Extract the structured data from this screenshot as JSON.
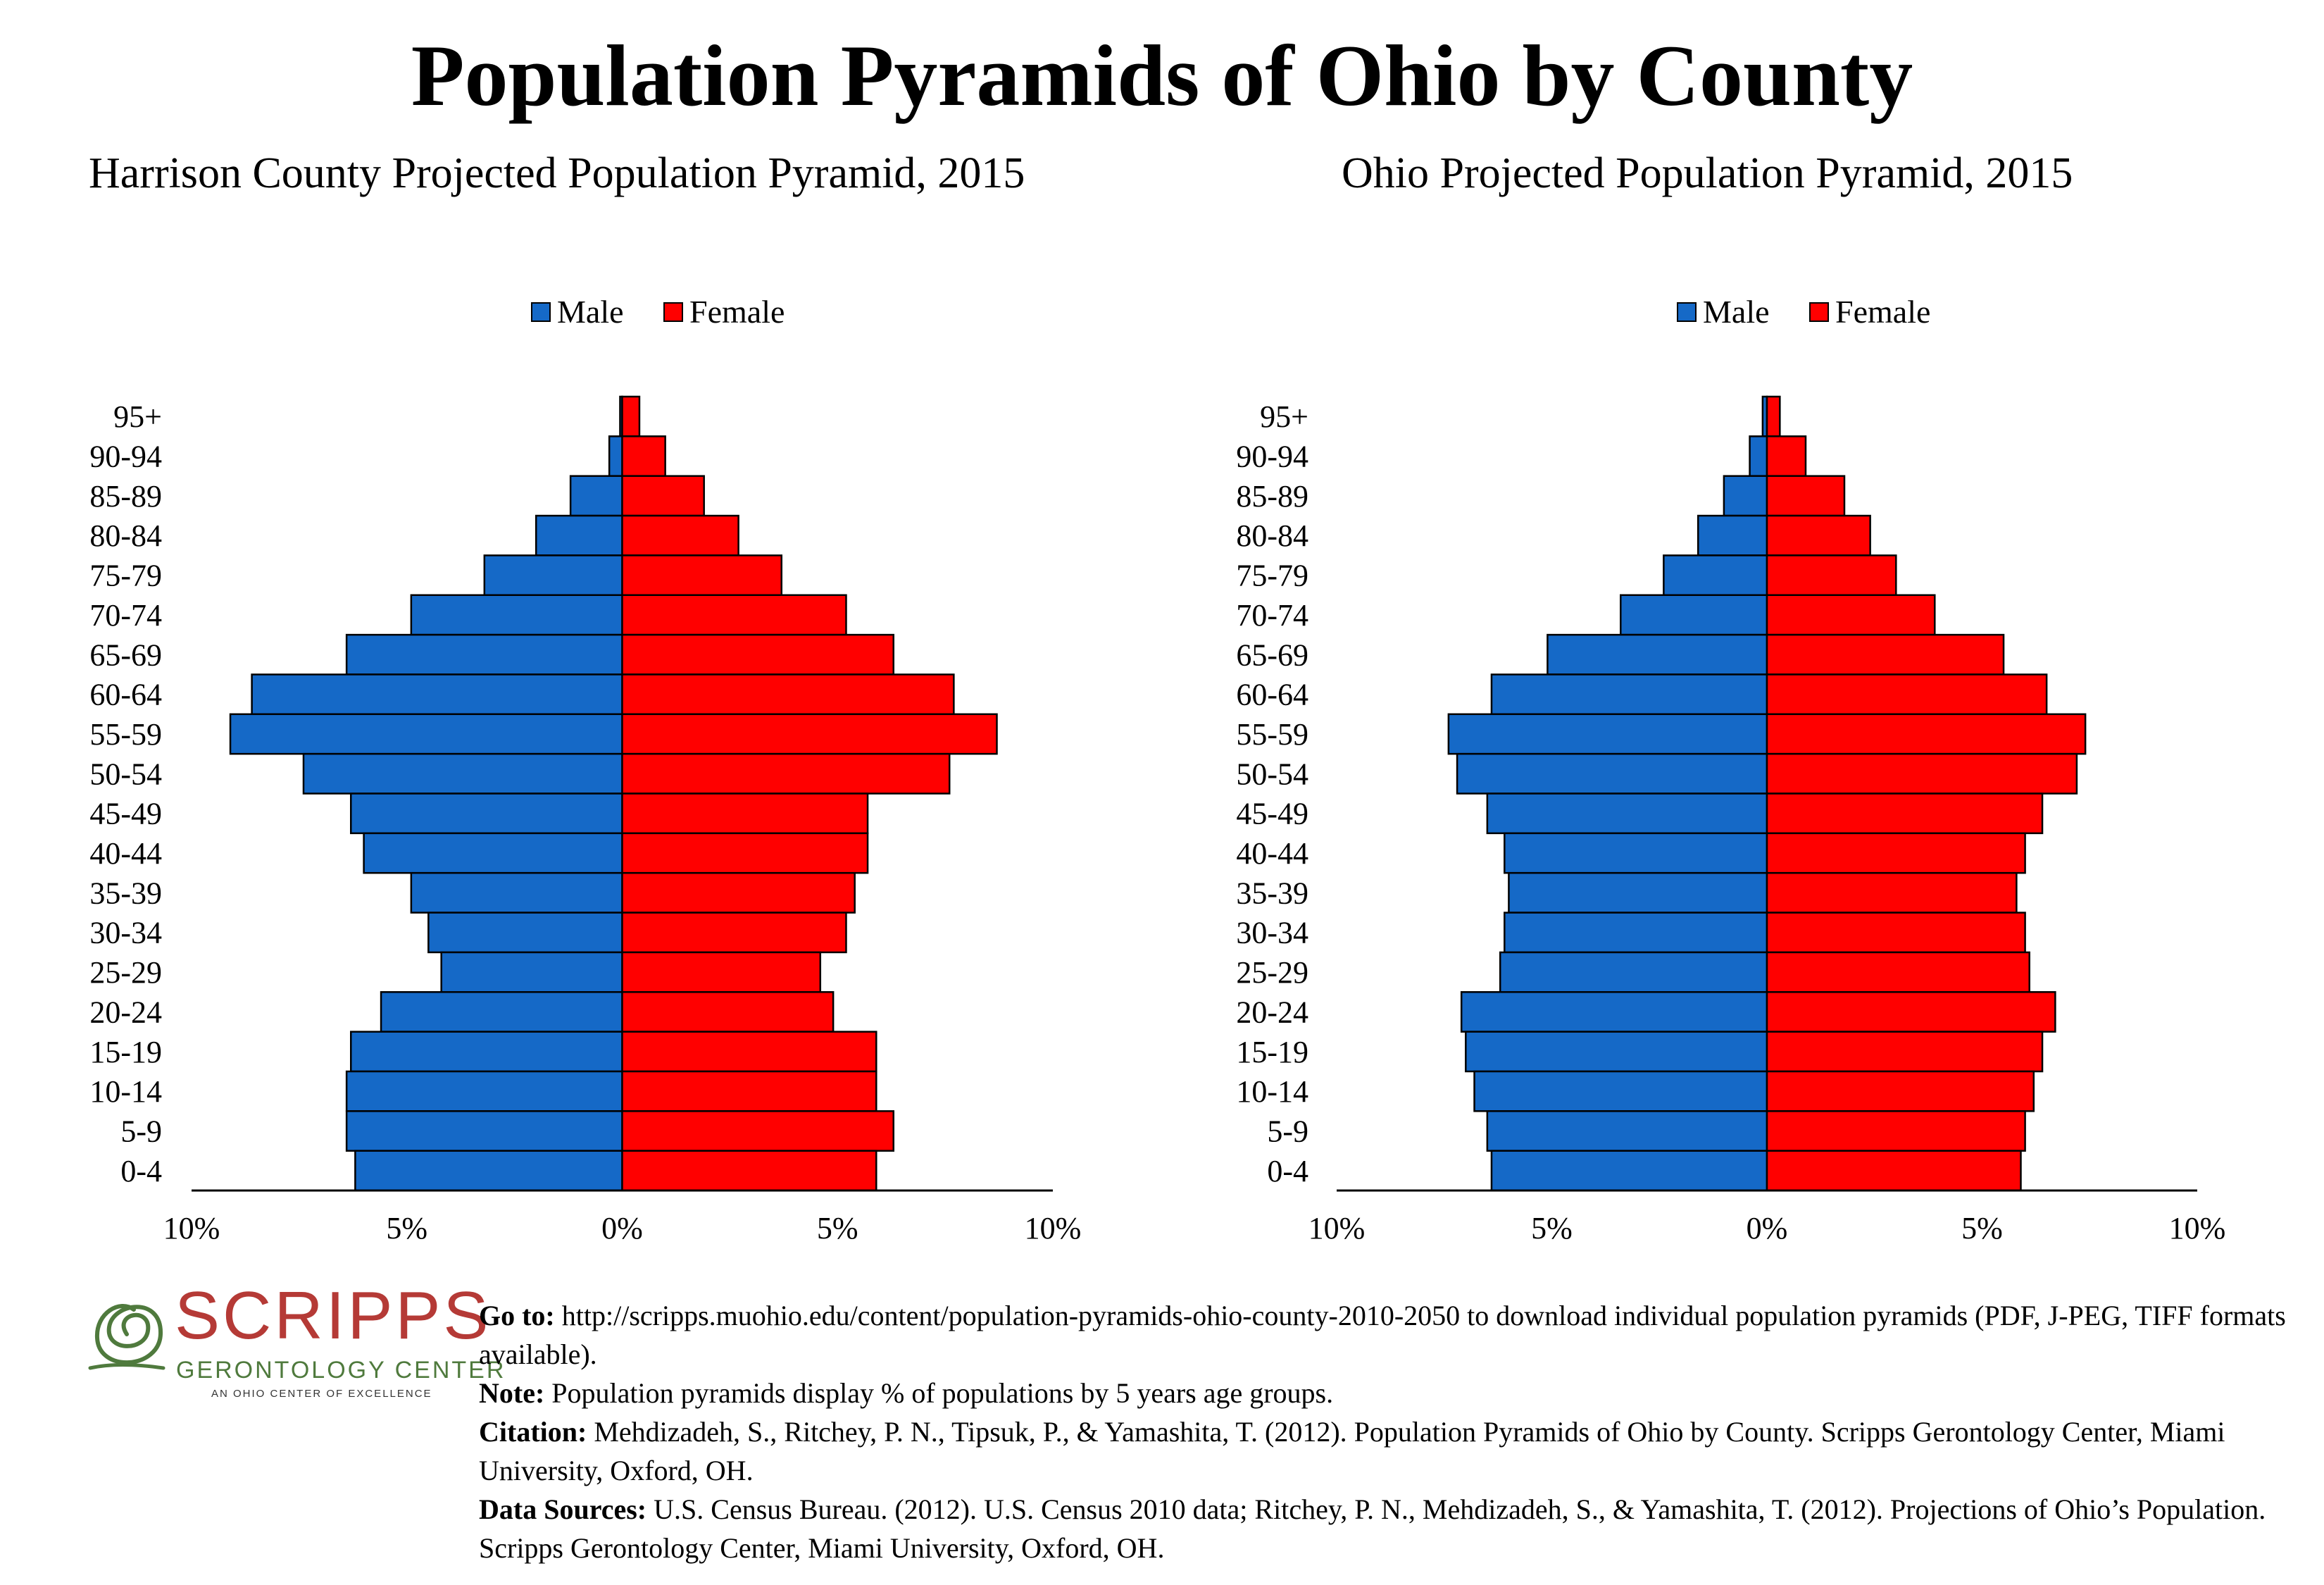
{
  "page": {
    "title": "Population Pyramids of Ohio by County"
  },
  "colors": {
    "male": "#1569c7",
    "female": "#ff0000",
    "logo_red": "#b53a36",
    "logo_green": "#4f7a3d"
  },
  "chart_data": [
    {
      "type": "bar",
      "title": "Harrison County Projected Population Pyramid, 2015",
      "categories": [
        "95+",
        "90-94",
        "85-89",
        "80-84",
        "75-79",
        "70-74",
        "65-69",
        "60-64",
        "55-59",
        "50-54",
        "45-49",
        "40-44",
        "35-39",
        "30-34",
        "25-29",
        "20-24",
        "15-19",
        "10-14",
        "5-9",
        "0-4"
      ],
      "series": [
        {
          "name": "Male",
          "color": "#1569c7",
          "values": [
            0.05,
            0.3,
            1.2,
            2.0,
            3.2,
            4.9,
            6.4,
            8.6,
            9.1,
            7.4,
            6.3,
            6.0,
            4.9,
            4.5,
            4.2,
            5.6,
            6.3,
            6.4,
            6.4,
            6.2
          ]
        },
        {
          "name": "Female",
          "color": "#ff0000",
          "values": [
            0.4,
            1.0,
            1.9,
            2.7,
            3.7,
            5.2,
            6.3,
            7.7,
            8.7,
            7.6,
            5.7,
            5.7,
            5.4,
            5.2,
            4.6,
            4.9,
            5.9,
            5.9,
            6.3,
            5.9
          ]
        }
      ],
      "xlim": [
        -10,
        10
      ],
      "xticks": [
        "10%",
        "5%",
        "0%",
        "5%",
        "10%"
      ],
      "legend": "top-center"
    },
    {
      "type": "bar",
      "title": "Ohio Projected Population Pyramid, 2015",
      "categories": [
        "95+",
        "90-94",
        "85-89",
        "80-84",
        "75-79",
        "70-74",
        "65-69",
        "60-64",
        "55-59",
        "50-54",
        "45-49",
        "40-44",
        "35-39",
        "30-34",
        "25-29",
        "20-24",
        "15-19",
        "10-14",
        "5-9",
        "0-4"
      ],
      "series": [
        {
          "name": "Male",
          "color": "#1569c7",
          "values": [
            0.1,
            0.4,
            1.0,
            1.6,
            2.4,
            3.4,
            5.1,
            6.4,
            7.4,
            7.2,
            6.5,
            6.1,
            6.0,
            6.1,
            6.2,
            7.1,
            7.0,
            6.8,
            6.5,
            6.4
          ]
        },
        {
          "name": "Female",
          "color": "#ff0000",
          "values": [
            0.3,
            0.9,
            1.8,
            2.4,
            3.0,
            3.9,
            5.5,
            6.5,
            7.4,
            7.2,
            6.4,
            6.0,
            5.8,
            6.0,
            6.1,
            6.7,
            6.4,
            6.2,
            6.0,
            5.9
          ]
        }
      ],
      "xlim": [
        -10,
        10
      ],
      "xticks": [
        "10%",
        "5%",
        "0%",
        "5%",
        "10%"
      ],
      "legend": "top-center"
    }
  ],
  "logo": {
    "word": "SCRIPPS",
    "sub": "GERONTOLOGY CENTER",
    "tagline": "AN OHIO CENTER OF EXCELLENCE"
  },
  "footer": {
    "goto_label": "Go to:",
    "goto_text": "http://scripps.muohio.edu/content/population-pyramids-ohio-county-2010-2050 to download individual population pyramids (PDF, J-PEG, TIFF formats available).",
    "note_label": "Note:",
    "note_text": "Population pyramids display % of populations by 5 years age groups.",
    "citation_label": "Citation:",
    "citation_text": "Mehdizadeh, S., Ritchey, P. N., Tipsuk, P., & Yamashita, T. (2012). Population Pyramids of Ohio by County. Scripps Gerontology Center, Miami University, Oxford, OH.",
    "sources_label": "Data Sources:",
    "sources_text": "U.S. Census Bureau. (2012). U.S. Census 2010 data; Ritchey, P. N., Mehdizadeh, S., & Yamashita, T. (2012). Projections of Ohio’s Population. Scripps Gerontology Center, Miami University, Oxford, OH."
  }
}
